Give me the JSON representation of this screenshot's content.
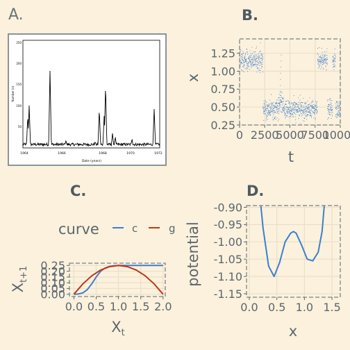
{
  "panels": [
    {
      "label": "A."
    },
    {
      "label": "B."
    },
    {
      "label": "C."
    },
    {
      "label": "D."
    }
  ],
  "panel_a": {
    "ylabel": "Number (n)",
    "xlabel": "Date (years)",
    "yticks": [
      "250",
      "200",
      "150",
      "100",
      "50"
    ],
    "xticks": [
      "1964",
      "1966",
      "1968",
      "1970",
      "1972"
    ]
  },
  "colors": {
    "background": "#fcf1dc",
    "grid": "#eadfc9",
    "axis_text": "#5a6670",
    "blue": "#3a7fcf",
    "red": "#c0361c",
    "frame": "#8a9499"
  },
  "chart_data": [
    {
      "panel": "B",
      "type": "scatter",
      "xlabel": "t",
      "ylabel": "x",
      "xlim": [
        0,
        10000
      ],
      "ylim": [
        0.25,
        1.45
      ],
      "xticks": [
        "0",
        "2500",
        "5000",
        "7500",
        "10000"
      ],
      "yticks": [
        "0.25",
        "0.50",
        "0.75",
        "1.00",
        "1.25"
      ],
      "regimes": [
        {
          "t_start": 0,
          "t_end": 2300,
          "mean": 1.15
        },
        {
          "t_start": 2300,
          "t_end": 3800,
          "mean": 0.47
        },
        {
          "t_start": 3800,
          "t_end": 4300,
          "mean": 0.55
        },
        {
          "t_start": 4300,
          "t_end": 7700,
          "mean": 0.47
        },
        {
          "t_start": 7700,
          "t_end": 8700,
          "mean": 1.15
        },
        {
          "t_start": 8700,
          "t_end": 9200,
          "mean": 0.47
        },
        {
          "t_start": 9200,
          "t_end": 9500,
          "mean": 1.15
        },
        {
          "t_start": 9500,
          "t_end": 10000,
          "mean": 0.47
        }
      ]
    },
    {
      "panel": "C",
      "type": "line",
      "xlabel": "X",
      "xlabel_sub": "t",
      "ylabel": "X",
      "ylabel_sub": "t+1",
      "xlim": [
        -0.1,
        2.05
      ],
      "ylim": [
        -0.02,
        0.27
      ],
      "xticks": [
        "0.0",
        "0.5",
        "1.0",
        "1.5",
        "2.0"
      ],
      "yticks": [
        "0.00",
        "0.05",
        "0.10",
        "0.15",
        "0.20",
        "0.25"
      ],
      "legend": {
        "title": "curve",
        "entries": [
          "c",
          "g"
        ]
      },
      "series": [
        {
          "name": "c",
          "color": "#3a7fcf",
          "x": [
            0.0,
            0.1,
            0.2,
            0.3,
            0.4,
            0.5,
            0.6,
            0.7,
            0.8,
            0.9,
            1.0,
            1.2,
            1.5,
            2.0
          ],
          "y": [
            0.0,
            0.002,
            0.012,
            0.04,
            0.09,
            0.15,
            0.2,
            0.228,
            0.242,
            0.248,
            0.25,
            0.25,
            0.25,
            0.25
          ]
        },
        {
          "name": "g",
          "color": "#c0361c",
          "x": [
            0.0,
            0.2,
            0.4,
            0.6,
            0.8,
            1.0,
            1.2,
            1.4,
            1.6,
            1.8,
            2.0
          ],
          "y": [
            0.0,
            0.09,
            0.16,
            0.21,
            0.24,
            0.25,
            0.24,
            0.21,
            0.16,
            0.09,
            0.0
          ]
        }
      ]
    },
    {
      "panel": "D",
      "type": "line",
      "xlabel": "x",
      "ylabel": "potential",
      "xlim": [
        -0.05,
        1.65
      ],
      "ylim": [
        -1.16,
        -0.895
      ],
      "xticks": [
        "0.0",
        "0.5",
        "1.0",
        "1.5"
      ],
      "yticks": [
        "-1.15",
        "-1.10",
        "-1.05",
        "-1.00",
        "-0.95",
        "-0.90"
      ],
      "series": [
        {
          "name": "potential",
          "color": "#3a7fcf",
          "x": [
            0.15,
            0.25,
            0.35,
            0.45,
            0.55,
            0.65,
            0.75,
            0.8,
            0.85,
            0.95,
            1.05,
            1.15,
            1.25,
            1.32,
            1.4
          ],
          "y": [
            -0.8,
            -0.96,
            -1.07,
            -1.1,
            -1.06,
            -1.0,
            -0.975,
            -0.97,
            -0.975,
            -1.01,
            -1.05,
            -1.055,
            -1.03,
            -0.97,
            -0.82
          ]
        }
      ]
    }
  ]
}
